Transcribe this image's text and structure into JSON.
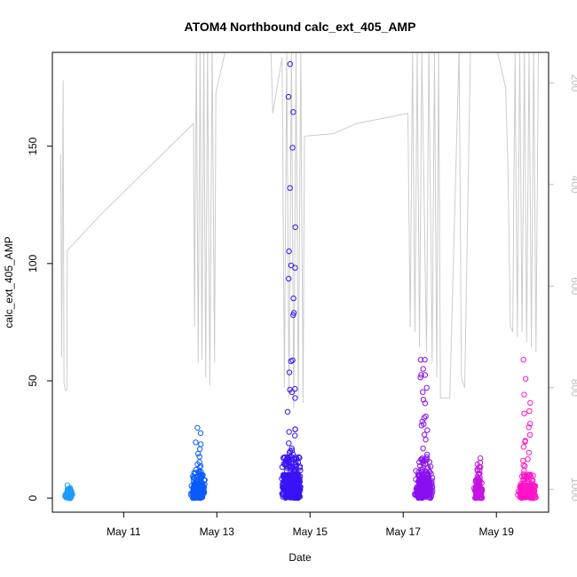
{
  "chart_data": {
    "type": "scatter",
    "title": "ATOM4 Northbound calc_ext_405_AMP",
    "xlabel": "Date",
    "ylabel": "calc_ext_405_AMP",
    "x_start": "2024-05-09T12:00",
    "x_end": "2024-05-20T12:00",
    "xlim": [
      -1.53,
      9.12
    ],
    "ylim": [
      -6,
      190
    ],
    "right_ylim": [
      1045,
      140
    ],
    "x_ticks": [
      {
        "label": "May 11",
        "value": 0
      },
      {
        "label": "May 13",
        "value": 2
      },
      {
        "label": "May 15",
        "value": 4
      },
      {
        "label": "May 17",
        "value": 6
      },
      {
        "label": "May 19",
        "value": 8
      }
    ],
    "y_ticks": [
      {
        "label": "0",
        "value": 0
      },
      {
        "label": "50",
        "value": 50
      },
      {
        "label": "100",
        "value": 100
      },
      {
        "label": "150",
        "value": 150
      }
    ],
    "right_y_ticks": [
      {
        "label": "200",
        "value": 200
      },
      {
        "label": "400",
        "value": 400
      },
      {
        "label": "600",
        "value": 600
      },
      {
        "label": "800",
        "value": 800
      },
      {
        "label": "1000",
        "value": 1000
      }
    ],
    "clusters": [
      {
        "name": "",
        "color": "#1e9bff",
        "x_center": -1.18,
        "x_spread": 0.09,
        "base_max": 3.5,
        "tail_max": 5.5,
        "n": 120
      },
      {
        "name": "",
        "color": "#0a5cff",
        "x_center": 1.6,
        "x_spread": 0.16,
        "base_max": 11,
        "tail_max": 30,
        "n": 260
      },
      {
        "name": "",
        "color": "#3a14f5",
        "x_center": 3.6,
        "x_spread": 0.22,
        "base_max": 18,
        "tail_max": 185,
        "n": 460
      },
      {
        "name": "",
        "color": "#8a10f0",
        "x_center": 6.45,
        "x_spread": 0.22,
        "base_max": 16,
        "tail_max": 59,
        "n": 300
      },
      {
        "name": "",
        "color": "#c514e2",
        "x_center": 7.62,
        "x_spread": 0.1,
        "base_max": 8,
        "tail_max": 17,
        "n": 160
      },
      {
        "name": "",
        "color": "#ff14c8",
        "x_center": 8.65,
        "x_spread": 0.2,
        "base_max": 10,
        "tail_max": 59,
        "n": 300
      }
    ],
    "depth_line": {
      "color": "#cccccc",
      "points": [
        [
          -1.35,
          340
        ],
        [
          -1.33,
          740
        ],
        [
          -1.3,
          195
        ],
        [
          -1.28,
          790
        ],
        [
          -1.25,
          805
        ],
        [
          -1.22,
          805
        ],
        [
          -1.21,
          530
        ],
        [
          -0.5,
          460
        ],
        [
          1.0,
          325
        ],
        [
          1.5,
          280
        ],
        [
          1.52,
          680
        ],
        [
          1.56,
          130
        ],
        [
          1.6,
          750
        ],
        [
          1.64,
          130
        ],
        [
          1.68,
          745
        ],
        [
          1.72,
          130
        ],
        [
          1.76,
          780
        ],
        [
          1.8,
          130
        ],
        [
          1.85,
          795
        ],
        [
          1.9,
          130
        ],
        [
          1.95,
          750
        ],
        [
          1.98,
          220
        ],
        [
          2.2,
          130
        ],
        [
          2.7,
          100
        ],
        [
          3.15,
          100
        ],
        [
          3.2,
          260
        ],
        [
          3.4,
          150
        ],
        [
          3.45,
          800
        ],
        [
          3.5,
          140
        ],
        [
          3.55,
          820
        ],
        [
          3.6,
          140
        ],
        [
          3.65,
          840
        ],
        [
          3.7,
          140
        ],
        [
          3.75,
          820
        ],
        [
          3.8,
          140
        ],
        [
          3.85,
          830
        ],
        [
          3.88,
          305
        ],
        [
          4.5,
          300
        ],
        [
          5.0,
          280
        ],
        [
          6.1,
          260
        ],
        [
          6.15,
          680
        ],
        [
          6.2,
          140
        ],
        [
          6.25,
          690
        ],
        [
          6.3,
          140
        ],
        [
          6.35,
          720
        ],
        [
          6.4,
          140
        ],
        [
          6.5,
          730
        ],
        [
          6.55,
          130
        ],
        [
          6.62,
          750
        ],
        [
          6.67,
          140
        ],
        [
          6.72,
          780
        ],
        [
          6.76,
          140
        ],
        [
          6.8,
          820
        ],
        [
          7.0,
          820
        ],
        [
          7.2,
          130
        ],
        [
          7.25,
          780
        ],
        [
          7.32,
          800
        ],
        [
          7.45,
          100
        ],
        [
          8.0,
          130
        ],
        [
          8.2,
          210
        ],
        [
          8.25,
          375
        ],
        [
          8.3,
          680
        ],
        [
          8.35,
          690
        ],
        [
          8.4,
          140
        ],
        [
          8.45,
          700
        ],
        [
          8.5,
          140
        ],
        [
          8.55,
          690
        ],
        [
          8.6,
          140
        ],
        [
          8.65,
          710
        ],
        [
          8.7,
          140
        ],
        [
          8.75,
          720
        ],
        [
          8.8,
          140
        ],
        [
          8.85,
          730
        ],
        [
          8.9,
          140
        ]
      ]
    }
  }
}
